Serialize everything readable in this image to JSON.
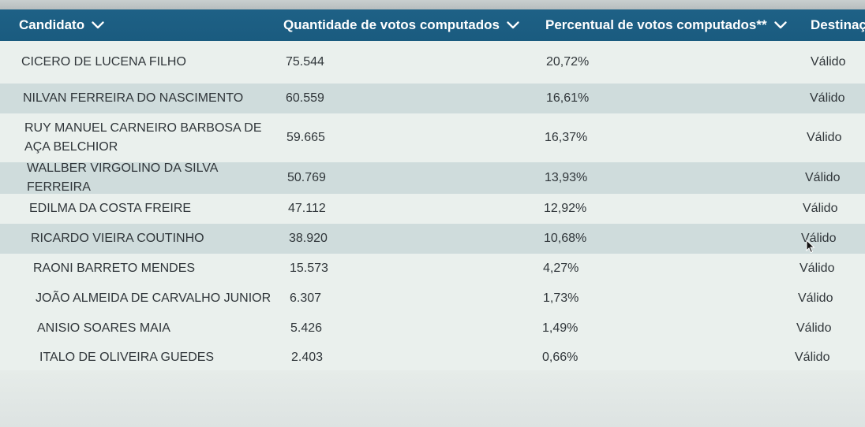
{
  "table": {
    "columns": [
      {
        "label": "Candidato",
        "icon": "chevron-down-icon"
      },
      {
        "label": "Quantidade de votos computados",
        "icon": "chevron-down-icon"
      },
      {
        "label": "Percentual de votos computados**",
        "icon": "chevron-down-icon"
      },
      {
        "label": "Destinaç"
      }
    ],
    "rows": [
      {
        "name": "CICERO DE LUCENA FILHO",
        "votes": "75.544",
        "percent": "20,72%",
        "destination": "Válido"
      },
      {
        "name": "NILVAN FERREIRA DO NASCIMENTO",
        "votes": "60.559",
        "percent": "16,61%",
        "destination": "Válido"
      },
      {
        "name": "RUY MANUEL CARNEIRO BARBOSA DE AÇA BELCHIOR",
        "votes": "59.665",
        "percent": "16,37%",
        "destination": "Válido"
      },
      {
        "name": "WALLBER VIRGOLINO DA SILVA FERREIRA",
        "votes": "50.769",
        "percent": "13,93%",
        "destination": "Válido"
      },
      {
        "name": "EDILMA DA COSTA FREIRE",
        "votes": "47.112",
        "percent": "12,92%",
        "destination": "Válido"
      },
      {
        "name": "RICARDO VIEIRA COUTINHO",
        "votes": "38.920",
        "percent": "10,68%",
        "destination": "Válido"
      },
      {
        "name": "RAONI BARRETO MENDES",
        "votes": "15.573",
        "percent": "4,27%",
        "destination": "Válido"
      },
      {
        "name": "JOÃO ALMEIDA DE CARVALHO JUNIOR",
        "votes": "6.307",
        "percent": "1,73%",
        "destination": "Válido"
      },
      {
        "name": "ANISIO SOARES MAIA",
        "votes": "5.426",
        "percent": "1,49%",
        "destination": "Válido"
      },
      {
        "name": "ITALO DE OLIVEIRA GUEDES",
        "votes": "2.403",
        "percent": "0,66%",
        "destination": "Válido"
      }
    ]
  },
  "colors": {
    "header_bg": "#1b5c80",
    "header_text": "#ffffff",
    "row_alt": "#cfdcdc",
    "row_plain": "#eaf0ed",
    "text": "#30363a"
  }
}
